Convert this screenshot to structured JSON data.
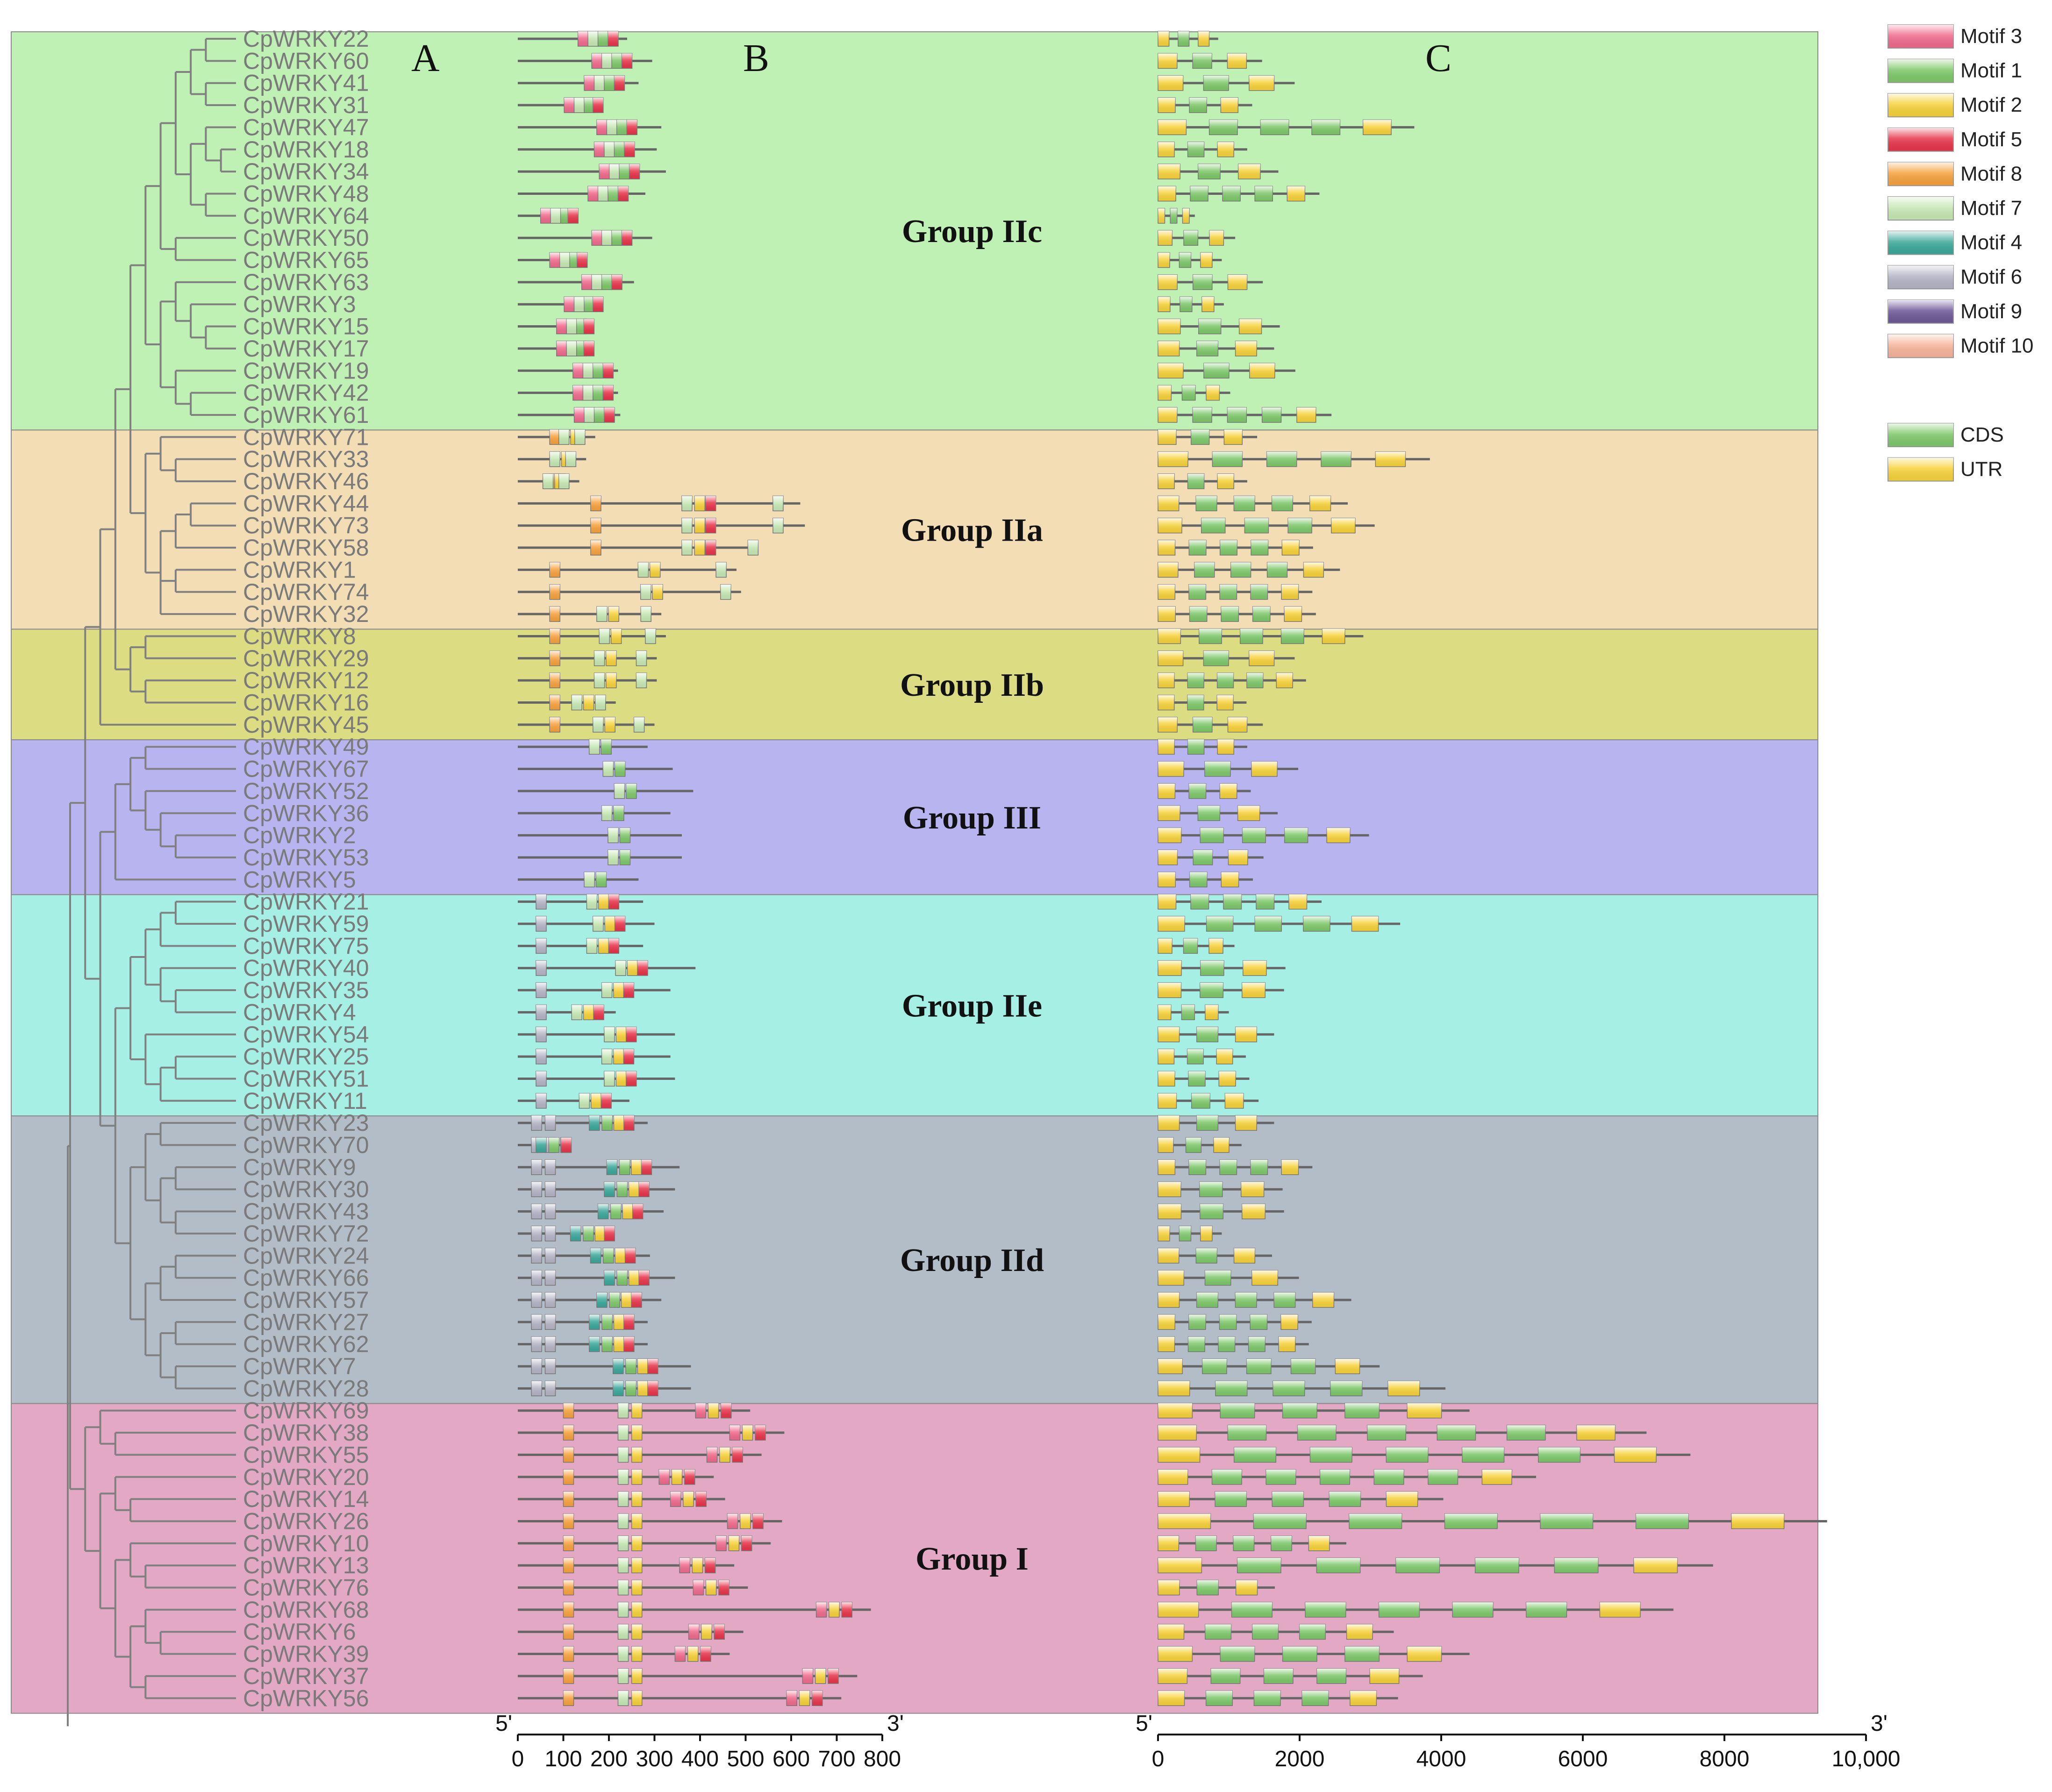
{
  "panels": {
    "a": "A",
    "b": "B",
    "c": "C"
  },
  "groups": [
    {
      "name": "Group IIc",
      "color": "#bff0b4",
      "rows": [
        0,
        18
      ]
    },
    {
      "name": "Group IIa",
      "color": "#f2ddb4",
      "rows": [
        18,
        27
      ]
    },
    {
      "name": "Group IIb",
      "color": "#dcdc82",
      "rows": [
        27,
        32
      ]
    },
    {
      "name": "Group III",
      "color": "#b7b4ef",
      "rows": [
        32,
        39
      ]
    },
    {
      "name": "Group IIe",
      "color": "#a6efe4",
      "rows": [
        39,
        49
      ]
    },
    {
      "name": "Group IId",
      "color": "#b2bdc8",
      "rows": [
        49,
        62
      ]
    },
    {
      "name": "Group I",
      "color": "#e2a8c4",
      "rows": [
        62,
        76
      ]
    }
  ],
  "genes": [
    "CpWRKY22",
    "CpWRKY60",
    "CpWRKY41",
    "CpWRKY31",
    "CpWRKY47",
    "CpWRKY18",
    "CpWRKY34",
    "CpWRKY48",
    "CpWRKY64",
    "CpWRKY50",
    "CpWRKY65",
    "CpWRKY63",
    "CpWRKY3",
    "CpWRKY15",
    "CpWRKY17",
    "CpWRKY19",
    "CpWRKY42",
    "CpWRKY61",
    "CpWRKY71",
    "CpWRKY33",
    "CpWRKY46",
    "CpWRKY44",
    "CpWRKY73",
    "CpWRKY58",
    "CpWRKY1",
    "CpWRKY74",
    "CpWRKY32",
    "CpWRKY8",
    "CpWRKY29",
    "CpWRKY12",
    "CpWRKY16",
    "CpWRKY45",
    "CpWRKY49",
    "CpWRKY67",
    "CpWRKY52",
    "CpWRKY36",
    "CpWRKY2",
    "CpWRKY53",
    "CpWRKY5",
    "CpWRKY21",
    "CpWRKY59",
    "CpWRKY75",
    "CpWRKY40",
    "CpWRKY35",
    "CpWRKY4",
    "CpWRKY54",
    "CpWRKY25",
    "CpWRKY51",
    "CpWRKY11",
    "CpWRKY23",
    "CpWRKY70",
    "CpWRKY9",
    "CpWRKY30",
    "CpWRKY43",
    "CpWRKY72",
    "CpWRKY24",
    "CpWRKY66",
    "CpWRKY57",
    "CpWRKY27",
    "CpWRKY62",
    "CpWRKY7",
    "CpWRKY28",
    "CpWRKY69",
    "CpWRKY38",
    "CpWRKY55",
    "CpWRKY20",
    "CpWRKY14",
    "CpWRKY26",
    "CpWRKY10",
    "CpWRKY13",
    "CpWRKY76",
    "CpWRKY68",
    "CpWRKY6",
    "CpWRKY39",
    "CpWRKY37",
    "CpWRKY56"
  ],
  "protein_lengths_aa": [
    240,
    295,
    265,
    185,
    315,
    305,
    325,
    280,
    130,
    295,
    150,
    255,
    185,
    165,
    165,
    220,
    220,
    225,
    170,
    150,
    135,
    620,
    630,
    525,
    480,
    490,
    315,
    325,
    305,
    305,
    215,
    300,
    285,
    340,
    385,
    335,
    360,
    360,
    265,
    275,
    300,
    275,
    390,
    335,
    215,
    345,
    335,
    345,
    245,
    285,
    115,
    355,
    345,
    320,
    210,
    290,
    345,
    315,
    285,
    285,
    380,
    380,
    510,
    585,
    535,
    430,
    455,
    580,
    555,
    475,
    505,
    775,
    495,
    465,
    745,
    710
  ],
  "gene_lengths_bp": [
    850,
    1470,
    1930,
    1330,
    3620,
    1260,
    1700,
    2280,
    520,
    1090,
    900,
    1480,
    930,
    1720,
    1640,
    1940,
    1020,
    2450,
    1400,
    3840,
    1260,
    2680,
    3060,
    2190,
    2570,
    2180,
    2230,
    2900,
    1930,
    2090,
    1250,
    1480,
    1260,
    1980,
    1310,
    1690,
    2980,
    1490,
    1340,
    2310,
    3420,
    1080,
    1800,
    1780,
    1000,
    1640,
    1240,
    1290,
    1420,
    1640,
    1180,
    2180,
    1760,
    1780,
    900,
    1610,
    1990,
    2730,
    2170,
    2130,
    3130,
    4060,
    4400,
    6900,
    7520,
    5340,
    4030,
    9450,
    2660,
    7840,
    1650,
    7280,
    3330,
    4400,
    3740,
    3390
  ],
  "motif_legend": [
    {
      "label": "Motif 3",
      "color": "#f06a8c"
    },
    {
      "label": "Motif 1",
      "color": "#7ec86a"
    },
    {
      "label": "Motif 2",
      "color": "#f7d23a"
    },
    {
      "label": "Motif 5",
      "color": "#e8344a"
    },
    {
      "label": "Motif 8",
      "color": "#f7a23e"
    },
    {
      "label": "Motif 7",
      "color": "#c6e8b4"
    },
    {
      "label": "Motif 4",
      "color": "#3aa89a"
    },
    {
      "label": "Motif 6",
      "color": "#b4b4c6"
    },
    {
      "label": "Motif 9",
      "color": "#6e5898"
    },
    {
      "label": "Motif 10",
      "color": "#f7b49a"
    }
  ],
  "structure_legend": [
    {
      "label": "CDS",
      "color": "#7ec86a"
    },
    {
      "label": "UTR",
      "color": "#f7d23a"
    }
  ],
  "axis_b": {
    "start_label": "5'",
    "end_label": "3'",
    "ticks": [
      "0",
      "100",
      "200",
      "300",
      "400",
      "500",
      "600",
      "700",
      "800"
    ],
    "max": 800
  },
  "axis_c": {
    "start_label": "5'",
    "end_label": "3'",
    "ticks": [
      "0",
      "2000",
      "4000",
      "6000",
      "8000",
      "10,000"
    ],
    "max": 10000
  }
}
